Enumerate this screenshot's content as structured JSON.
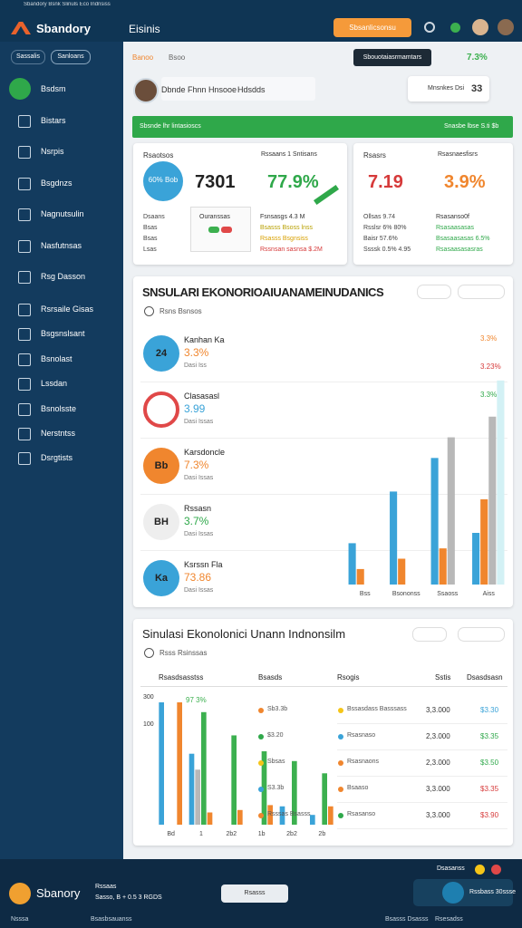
{
  "browser_tab": "Sbandory Bsnk Slinuls Eco Indnsiss",
  "topbar": {
    "brand": "Sbandory",
    "title": "Eisinis",
    "button": "Sbsanlicsonsu"
  },
  "sidebar": {
    "tabs": [
      "Sassalis",
      "Sanloans"
    ],
    "items": [
      "Bsdsm",
      "Bistars",
      "Nsrpis",
      "Bsgdnzs",
      "Nagnutsulin",
      "Nasfutnsas",
      "Rsg Dasson",
      "Rsrsaile Gisas",
      "Bsgsnslsant",
      "Bsnolast",
      "Lssdan",
      "Bsnolsste",
      "Nerstntss",
      "Dsrgtists"
    ]
  },
  "subbar": {
    "filter": "Banoo",
    "filter2": "Bsoo",
    "action": "Sbouotaiasrmamtars",
    "rate": "7.3%"
  },
  "profile": {
    "name": "Dbnde Fhnn Hnsooe",
    "tag": "Hdsdds",
    "link": "Mnsnkes Dsi",
    "count": "33"
  },
  "banner": {
    "left": "Sbsnde lhr lintasioscs",
    "right": "Snasbe lbse S.ti $b"
  },
  "kpi_left": {
    "label_a": "Rsaotsos",
    "badge": "60% Bob",
    "value_a": "7301",
    "label_b": "Rssaans 1 Sntisans",
    "value_b": "77.9%",
    "rows": [
      "Dsaans",
      "Bsas",
      "Bsas",
      "Lsas"
    ],
    "box": "Ouranssas",
    "notes": [
      "Fsnsasgs 4.3 M",
      "Bsasss Bsoss lnss",
      "Rsasss Bsgnsiss",
      "Rssnsan sasnsa $.2M"
    ]
  },
  "kpi_right": {
    "label_a": "Rsasrs",
    "value_a": "7.19",
    "label_b": "Rsasnaesfisrs",
    "value_b": "3.9%",
    "rows": [
      "Ollsas 9.74",
      "Rsslsr 6% 80%",
      "Baisr 57.6%",
      "Ssssk 0.5% 4.95"
    ],
    "notes": [
      "Rsasanso0f",
      "Rsasaasasas",
      "Bsasaasasas 6.5%",
      "Rsasaasasasras"
    ]
  },
  "panel1": {
    "title": "SNSULARI EKONORIOAIUANAMEINUDANICS",
    "subtitle": "Rsns Bsnsos",
    "rows": [
      {
        "badge": "24",
        "name": "Kanhan Ka",
        "value": "3.3%",
        "note": "Dasi Iss"
      },
      {
        "badge": "",
        "name": "Clasasasl",
        "value": "3.99",
        "note": "Dasi Issas"
      },
      {
        "badge": "Bb",
        "name": "Karsdoncle",
        "value": "7.3%",
        "note": "Dasi Issas"
      },
      {
        "badge": "BH",
        "name": "Rssasn",
        "value": "3.7%",
        "note": "Dasi Issas"
      },
      {
        "badge": "Ka",
        "name": "Ksrssn Fla",
        "value": "73.86",
        "note": "Dasi Issas"
      }
    ],
    "side_labels": [
      "3.3%",
      "3.23%",
      "3.3%"
    ],
    "chart": {
      "type": "bar",
      "categories": [
        "Bss",
        "Bsononss",
        "Ssaoss",
        "Aiss"
      ],
      "ylim": [
        0,
        100
      ],
      "series": [
        {
          "name": "Blue",
          "color": "#3aa3d8",
          "values": [
            16,
            36,
            49,
            20
          ]
        },
        {
          "name": "Orange",
          "color": "#f0862e",
          "values": [
            6,
            10,
            14,
            33
          ]
        },
        {
          "name": "Gray",
          "color": "#b8b8b8",
          "values": [
            0,
            0,
            57,
            65
          ]
        },
        {
          "name": "Cyan",
          "color": "#d3f1f5",
          "values": [
            0,
            0,
            0,
            79
          ]
        }
      ]
    }
  },
  "panel2": {
    "title": "Sinulasi Ekonolonici Unann Indnonsilm",
    "subtitle": "Rsss Rsinssas",
    "chart_note": "97 3%",
    "y_labels": [
      "300",
      "100"
    ],
    "chart": {
      "type": "bar",
      "categories": [
        "Bd",
        "1",
        "2b2",
        "1b",
        "2b2",
        "2b"
      ],
      "ylim": [
        0,
        100
      ],
      "series": [
        {
          "name": "Blue",
          "color": "#3aa3d8",
          "values": [
            100,
            58,
            0,
            0,
            15,
            8
          ]
        },
        {
          "name": "Gray",
          "color": "#b8b8b8",
          "values": [
            0,
            45,
            0,
            0,
            0,
            0
          ]
        },
        {
          "name": "Green",
          "color": "#3cb04f",
          "values": [
            0,
            92,
            73,
            60,
            52,
            42
          ]
        },
        {
          "name": "Orange",
          "color": "#f0862e",
          "values": [
            100,
            10,
            12,
            16,
            0,
            15
          ]
        }
      ]
    },
    "table": {
      "header": [
        "Rsasdsasstss",
        "Bsasds",
        "Rsogis",
        "Sstis",
        "Dsasdsasn"
      ],
      "rows": [
        [
          "Sb3.3b",
          "Bssasdass Basssass",
          "3,3.000",
          "$3.30"
        ],
        [
          "$3.20",
          "Rsasnaso",
          "2,3.000",
          "$3.35"
        ],
        [
          "Sbsas",
          "Rsasnaons",
          "2,3.000",
          "$3.50"
        ],
        [
          "S3.3b",
          "Bsaaso",
          "3,3.000",
          "$3.35"
        ],
        [
          "Rsssas Bsasss",
          "Rsasanso",
          "3,3.000",
          "$3.90"
        ]
      ]
    }
  },
  "bottom": {
    "name": "Sbanory",
    "role": "Rssaas",
    "meta": "Sasso, B + 0.5 3 RGDS",
    "button": "Rsasss",
    "status": "Dsasanss",
    "card": "Rssbass 30ssse",
    "links": [
      "Nsssa",
      "Bsasbsauanss",
      "Bsasss Dsasss",
      "Rsesadss"
    ]
  }
}
